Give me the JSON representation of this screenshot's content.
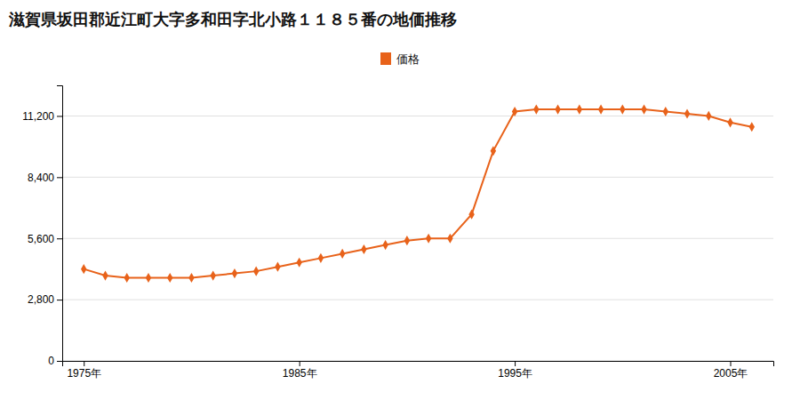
{
  "chart_data": {
    "type": "line",
    "title": "滋賀県坂田郡近江町大字多和田字北小路１１８５番の地価推移",
    "x": [
      1975,
      1976,
      1977,
      1978,
      1979,
      1980,
      1981,
      1982,
      1983,
      1984,
      1985,
      1986,
      1987,
      1988,
      1989,
      1990,
      1991,
      1992,
      1993,
      1994,
      1995,
      1996,
      1997,
      1998,
      1999,
      2000,
      2001,
      2002,
      2003,
      2004,
      2005,
      2006
    ],
    "series": [
      {
        "name": "価格",
        "color": "#e8621a",
        "marker": "diamond",
        "values": [
          4200,
          3900,
          3800,
          3800,
          3800,
          3800,
          3900,
          4000,
          4100,
          4300,
          4500,
          4700,
          4900,
          5100,
          5300,
          5500,
          5600,
          5600,
          6700,
          9600,
          11400,
          11500,
          11500,
          11500,
          11500,
          11500,
          11500,
          11400,
          11300,
          11200,
          10900,
          10700
        ]
      }
    ],
    "xlim": [
      1974,
      2007
    ],
    "xticks": [
      {
        "value": 1975,
        "label": "1975年"
      },
      {
        "value": 1985,
        "label": "1985年"
      },
      {
        "value": 1995,
        "label": "1995年"
      },
      {
        "value": 2005,
        "label": "2005年"
      }
    ],
    "ylim": [
      0,
      12600
    ],
    "yticks": [
      0,
      {
        "value": 2800,
        "label": "2,800"
      },
      {
        "value": 5600,
        "label": "5,600"
      },
      {
        "value": 8400,
        "label": "8,400"
      },
      {
        "value": 11200,
        "label": "11,200"
      }
    ],
    "grid": true,
    "legend": "top"
  }
}
